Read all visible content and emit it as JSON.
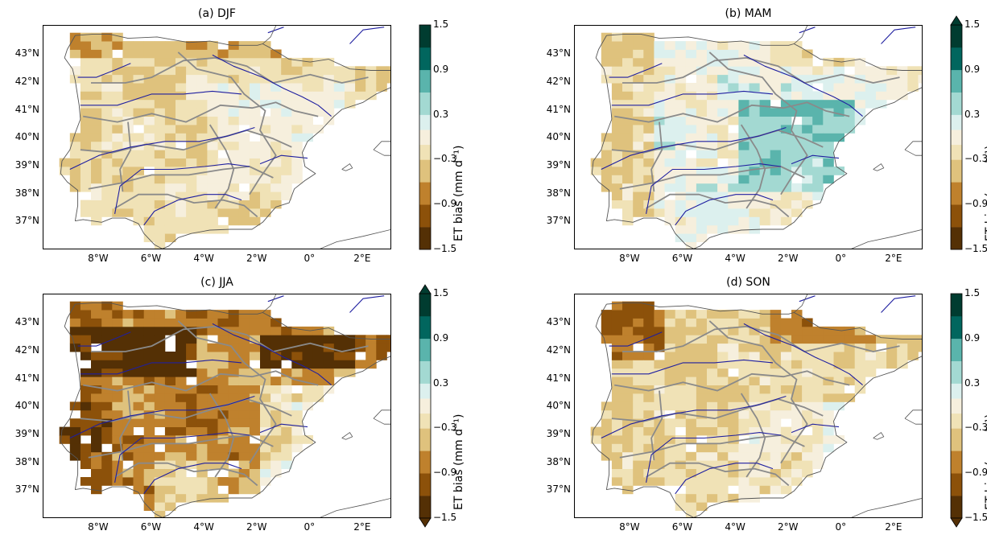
{
  "panels": [
    {
      "id": "a",
      "title": "(a) DJF",
      "mode": "djf",
      "extend": "none"
    },
    {
      "id": "b",
      "title": "(b) MAM",
      "mode": "mam",
      "extend": "max"
    },
    {
      "id": "c",
      "title": "(c) JJA",
      "mode": "jja",
      "extend": "both"
    },
    {
      "id": "d",
      "title": "(d) SON",
      "mode": "son",
      "extend": "min"
    }
  ],
  "latitude_ticks": [
    "43°N",
    "42°N",
    "41°N",
    "40°N",
    "39°N",
    "38°N",
    "37°N"
  ],
  "longitude_ticks": [
    "8°W",
    "6°W",
    "4°W",
    "2°W",
    "0°",
    "2°E"
  ],
  "colorbar": {
    "label": "ET bias (mm d⁻¹)",
    "tick_labels": [
      "1.5",
      "0.9",
      "0.3",
      "−0.3",
      "−0.9",
      "−1.5"
    ],
    "bounds": [
      -1.5,
      -1.2,
      -0.9,
      -0.6,
      -0.3,
      -0.1,
      0.1,
      0.3,
      0.6,
      0.9,
      1.2,
      1.5
    ],
    "colors": [
      "#543005",
      "#8c510a",
      "#bf812d",
      "#dfc27d",
      "#f0e2b6",
      "#f6efdd",
      "#dcf0ee",
      "#a3d9d2",
      "#5ab4ac",
      "#01665e",
      "#003c30"
    ]
  },
  "colors": {
    "coastline": "#555555",
    "basin_boundary": "#8a8a8a",
    "river": "#1f1fa0"
  }
}
